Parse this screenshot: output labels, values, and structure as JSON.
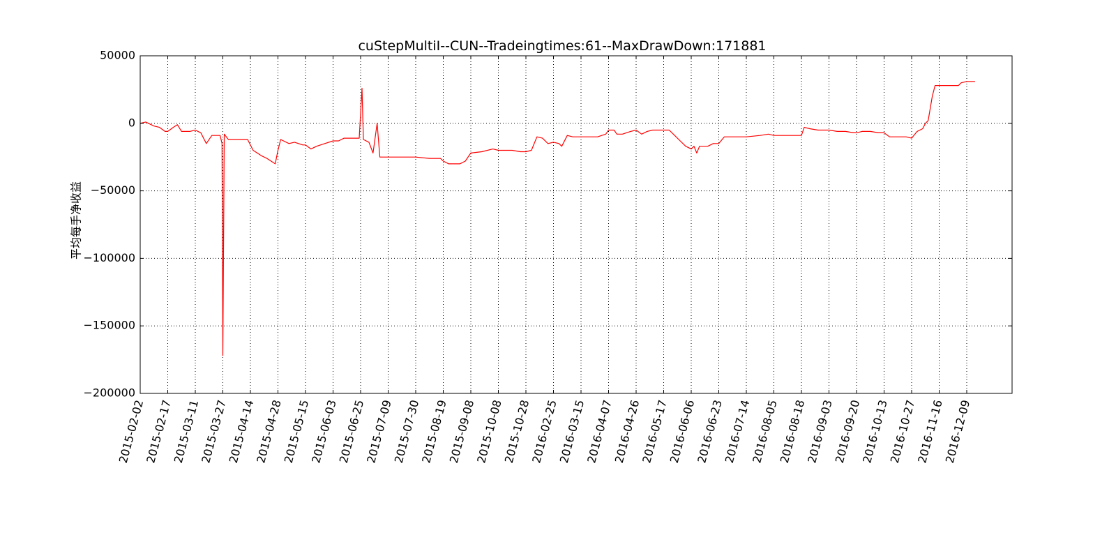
{
  "chart_data": {
    "type": "line",
    "title": "cuStepMultiI--CUN--Tradeingtimes:61--MaxDrawDown:171881",
    "xlabel": "",
    "ylabel": "平均每手净收益",
    "ylim": [
      -200000,
      50000
    ],
    "yticks": [
      50000,
      0,
      -50000,
      -100000,
      -150000,
      -200000
    ],
    "ytick_labels": [
      "50000",
      "0",
      "−50000",
      "−100000",
      "−150000",
      "−200000"
    ],
    "grid": true,
    "line_color": "#ff0000",
    "categories": [
      "2015-02-02",
      "2015-02-17",
      "2015-03-11",
      "2015-03-27",
      "2015-04-14",
      "2015-04-28",
      "2015-05-15",
      "2015-06-03",
      "2015-06-25",
      "2015-07-09",
      "2015-07-30",
      "2015-08-19",
      "2015-09-08",
      "2015-10-08",
      "2015-10-28",
      "2016-02-25",
      "2016-03-15",
      "2016-04-07",
      "2016-04-26",
      "2016-05-17",
      "2016-06-06",
      "2016-06-23",
      "2016-07-14",
      "2016-08-05",
      "2016-08-18",
      "2016-09-03",
      "2016-09-20",
      "2016-10-13",
      "2016-10-27",
      "2016-11-16",
      "2016-12-09"
    ],
    "series": [
      {
        "values": [
          [
            0,
            0
          ],
          [
            0.2,
            1000
          ],
          [
            0.5,
            -2000
          ],
          [
            0.7,
            -3000
          ],
          [
            0.9,
            -6000
          ],
          [
            1,
            -6000
          ],
          [
            1.2,
            -3000
          ],
          [
            1.35,
            -1000
          ],
          [
            1.5,
            -6000
          ],
          [
            1.8,
            -6000
          ],
          [
            2,
            -5000
          ],
          [
            2.2,
            -7000
          ],
          [
            2.4,
            -15000
          ],
          [
            2.6,
            -9000
          ],
          [
            2.9,
            -9000
          ],
          [
            2.97,
            -15000
          ],
          [
            3,
            -171881
          ],
          [
            3.05,
            -8000
          ],
          [
            3.2,
            -12000
          ],
          [
            3.6,
            -12000
          ],
          [
            3.9,
            -12000
          ],
          [
            4.1,
            -20000
          ],
          [
            4.4,
            -24000
          ],
          [
            4.6,
            -26000
          ],
          [
            4.9,
            -30000
          ],
          [
            5,
            -20000
          ],
          [
            5.1,
            -12000
          ],
          [
            5.4,
            -15000
          ],
          [
            5.6,
            -14000
          ],
          [
            5.9,
            -16000
          ],
          [
            6,
            -16000
          ],
          [
            6.2,
            -19000
          ],
          [
            6.4,
            -17000
          ],
          [
            6.7,
            -15000
          ],
          [
            7,
            -13000
          ],
          [
            7.2,
            -13000
          ],
          [
            7.4,
            -11000
          ],
          [
            7.7,
            -11000
          ],
          [
            7.95,
            -11000
          ],
          [
            8.05,
            26000
          ],
          [
            8.1,
            -12000
          ],
          [
            8.3,
            -14000
          ],
          [
            8.45,
            -22000
          ],
          [
            8.6,
            0
          ],
          [
            8.7,
            -25000
          ],
          [
            9,
            -25000
          ],
          [
            9.5,
            -25000
          ],
          [
            10,
            -25000
          ],
          [
            10.5,
            -26000
          ],
          [
            10.9,
            -26000
          ],
          [
            11,
            -28000
          ],
          [
            11.2,
            -30000
          ],
          [
            11.6,
            -30000
          ],
          [
            11.8,
            -28000
          ],
          [
            12,
            -22000
          ],
          [
            12.4,
            -21000
          ],
          [
            12.8,
            -19000
          ],
          [
            13,
            -20000
          ],
          [
            13.5,
            -20000
          ],
          [
            13.8,
            -21000
          ],
          [
            14,
            -21000
          ],
          [
            14.2,
            -20000
          ],
          [
            14.4,
            -10000
          ],
          [
            14.6,
            -11000
          ],
          [
            14.8,
            -15000
          ],
          [
            15,
            -14000
          ],
          [
            15.2,
            -15000
          ],
          [
            15.3,
            -17000
          ],
          [
            15.5,
            -9000
          ],
          [
            15.7,
            -10000
          ],
          [
            16,
            -10000
          ],
          [
            16.3,
            -10000
          ],
          [
            16.6,
            -10000
          ],
          [
            16.9,
            -8000
          ],
          [
            17,
            -5000
          ],
          [
            17.2,
            -5000
          ],
          [
            17.3,
            -8000
          ],
          [
            17.5,
            -8000
          ],
          [
            17.8,
            -6000
          ],
          [
            18,
            -5000
          ],
          [
            18.2,
            -8000
          ],
          [
            18.4,
            -6000
          ],
          [
            18.6,
            -5000
          ],
          [
            18.8,
            -5000
          ],
          [
            19,
            -5000
          ],
          [
            19.2,
            -5000
          ],
          [
            19.4,
            -9000
          ],
          [
            19.6,
            -13000
          ],
          [
            19.8,
            -17000
          ],
          [
            20,
            -19000
          ],
          [
            20.1,
            -17000
          ],
          [
            20.2,
            -22000
          ],
          [
            20.3,
            -17000
          ],
          [
            20.6,
            -17000
          ],
          [
            20.8,
            -15000
          ],
          [
            21,
            -15000
          ],
          [
            21.2,
            -10000
          ],
          [
            21.5,
            -10000
          ],
          [
            22,
            -10000
          ],
          [
            22.5,
            -9000
          ],
          [
            22.8,
            -8000
          ],
          [
            23,
            -9000
          ],
          [
            23.2,
            -9000
          ],
          [
            23.5,
            -9000
          ],
          [
            23.8,
            -9000
          ],
          [
            24,
            -9000
          ],
          [
            24.1,
            -3000
          ],
          [
            24.3,
            -4000
          ],
          [
            24.6,
            -5000
          ],
          [
            24.8,
            -5000
          ],
          [
            25,
            -5000
          ],
          [
            25.3,
            -6000
          ],
          [
            25.6,
            -6000
          ],
          [
            25.9,
            -7000
          ],
          [
            26,
            -7000
          ],
          [
            26.2,
            -6000
          ],
          [
            26.5,
            -6000
          ],
          [
            26.8,
            -7000
          ],
          [
            27,
            -7000
          ],
          [
            27.2,
            -10000
          ],
          [
            27.5,
            -10000
          ],
          [
            27.8,
            -10000
          ],
          [
            28,
            -11000
          ],
          [
            28.2,
            -6000
          ],
          [
            28.4,
            -4000
          ],
          [
            28.5,
            0
          ],
          [
            28.6,
            2000
          ],
          [
            28.75,
            20000
          ],
          [
            28.85,
            28000
          ],
          [
            29.2,
            28000
          ],
          [
            29.5,
            28000
          ],
          [
            29.7,
            28000
          ],
          [
            29.8,
            30000
          ],
          [
            30,
            31000
          ],
          [
            30.3,
            31000
          ]
        ]
      }
    ]
  }
}
